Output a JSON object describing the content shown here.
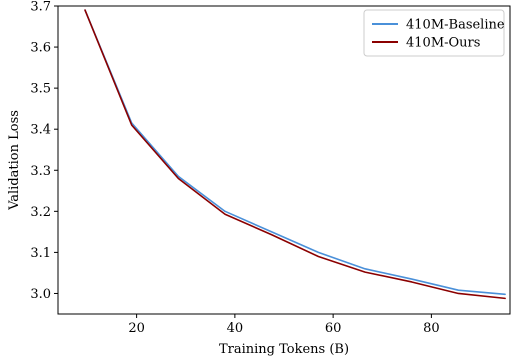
{
  "chart_data": {
    "type": "line",
    "title": "",
    "xlabel": "Training Tokens (B)",
    "ylabel": "Validation Loss",
    "xlim": [
      4,
      96
    ],
    "ylim": [
      2.95,
      3.7
    ],
    "xticks": [
      20,
      40,
      60,
      80
    ],
    "yticks": [
      3.0,
      3.1,
      3.2,
      3.3,
      3.4,
      3.5,
      3.6,
      3.7
    ],
    "grid": false,
    "legend_position": "top-right",
    "series": [
      {
        "name": "410M-Baseline",
        "color": "#4a90d9",
        "x": [
          9.5,
          19,
          28.5,
          38,
          47.5,
          57,
          66.5,
          76,
          85.5,
          95
        ],
        "y": [
          3.69,
          3.415,
          3.285,
          3.2,
          3.15,
          3.1,
          3.06,
          3.035,
          3.008,
          2.998
        ]
      },
      {
        "name": "410M-Ours",
        "color": "#8b0000",
        "x": [
          9.5,
          19,
          28.5,
          38,
          47.5,
          57,
          66.5,
          76,
          85.5,
          95
        ],
        "y": [
          3.69,
          3.41,
          3.28,
          3.193,
          3.143,
          3.09,
          3.052,
          3.028,
          3.0,
          2.988
        ]
      }
    ]
  }
}
